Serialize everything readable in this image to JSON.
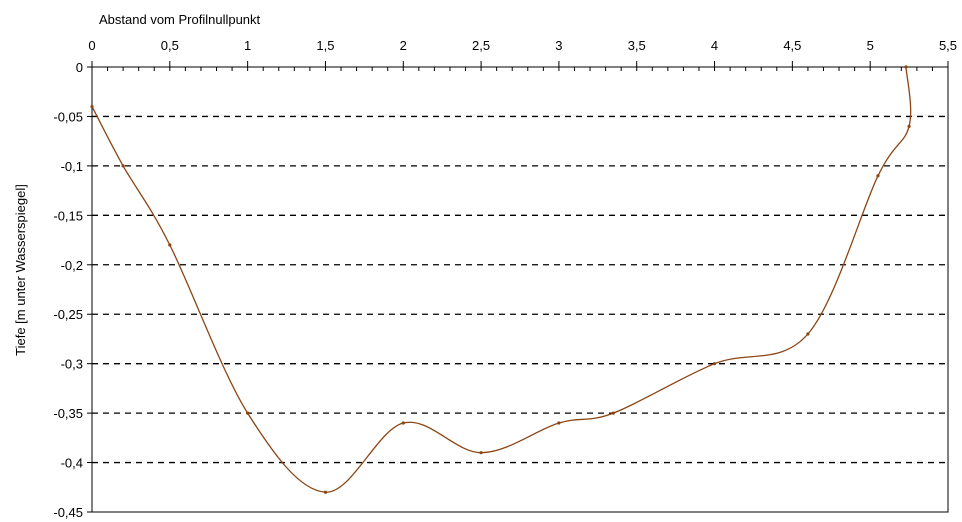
{
  "chart_data": {
    "type": "line",
    "title": "",
    "xlabel": "Abstand vom Profilnullpunkt",
    "ylabel": "Tiefe [m unter Wasserspiegel]",
    "xlim": [
      0,
      5.5
    ],
    "ylim": [
      -0.45,
      0
    ],
    "x_axis_position": "top",
    "grid": "horizontal dashed",
    "legend": "none",
    "x_ticks": [
      "0",
      "0,5",
      "1",
      "1,5",
      "2",
      "2,5",
      "3",
      "3,5",
      "4",
      "4,5",
      "5",
      "5,5"
    ],
    "y_ticks": [
      "0",
      "-0,05",
      "-0,1",
      "-0,15",
      "-0,2",
      "-0,25",
      "-0,3",
      "-0,35",
      "-0,4",
      "-0,45"
    ],
    "series": [
      {
        "color": "#8B4513",
        "x": [
          0,
          0.2,
          0.5,
          1.0,
          1.5,
          2.0,
          2.5,
          3.0,
          3.35,
          4.0,
          4.6,
          5.05,
          5.25,
          5.23
        ],
        "y": [
          -0.04,
          -0.1,
          -0.18,
          -0.35,
          -0.43,
          -0.36,
          -0.39,
          -0.36,
          -0.35,
          -0.3,
          -0.27,
          -0.11,
          -0.06,
          0
        ]
      }
    ]
  }
}
